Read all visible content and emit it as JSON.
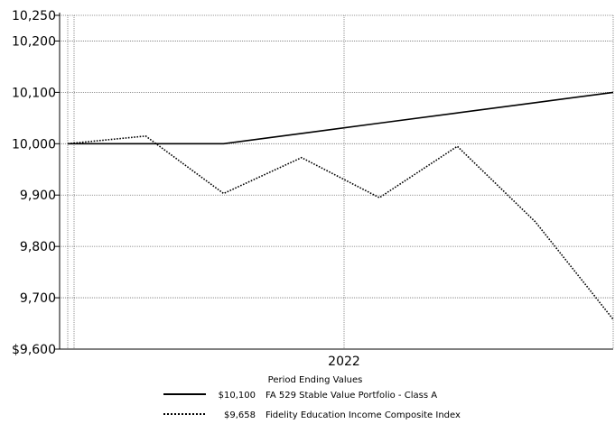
{
  "chart_data": {
    "type": "line",
    "title": "",
    "xlabel": "",
    "ylabel": "",
    "ylim": [
      9600,
      10250
    ],
    "y_ticks": [
      9600,
      9700,
      9800,
      9900,
      10000,
      10100,
      10200,
      10250
    ],
    "y_tick_labels": [
      "$9,600",
      "9,700",
      "9,800",
      "9,900",
      "10,000",
      "10,100",
      "10,200",
      "10,250"
    ],
    "x_tick_labels": [
      "2022"
    ],
    "grid": true,
    "series": [
      {
        "name": "FA 529 Stable Value Portfolio - Class A",
        "legend_value": "$10,100",
        "style": "solid",
        "values": [
          10000,
          10000,
          10000,
          10020,
          10040,
          10060,
          10080,
          10100
        ]
      },
      {
        "name": "Fidelity Education Income Composite Index",
        "legend_value": "$9,658",
        "style": "dotted",
        "values": [
          10000,
          10015,
          9903,
          9973,
          9895,
          9995,
          9848,
          9658
        ]
      }
    ],
    "legend": {
      "title": "Period Ending Values",
      "placement": "bottom"
    }
  }
}
